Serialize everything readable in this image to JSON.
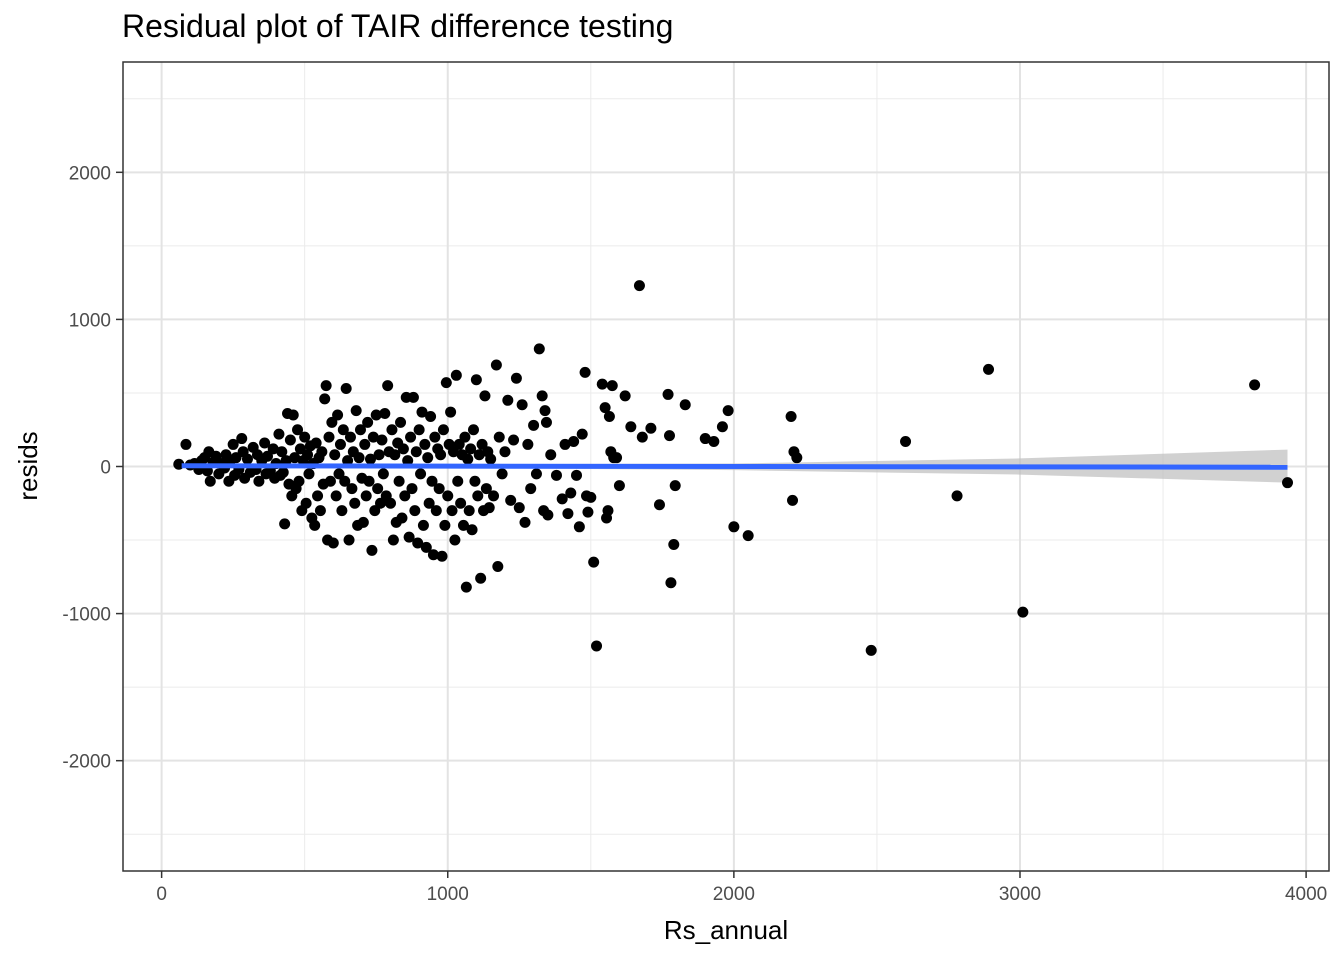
{
  "chart_data": {
    "type": "scatter",
    "title": "Residual plot of TAIR difference testing",
    "xlabel": "Rs_annual",
    "ylabel": "resids",
    "xlim": [
      -135,
      4080
    ],
    "ylim": [
      -2750,
      2750
    ],
    "x_ticks": [
      0,
      1000,
      2000,
      3000,
      4000
    ],
    "x_tick_labels": [
      "0",
      "1000",
      "2000",
      "3000",
      "4000"
    ],
    "y_ticks": [
      -2000,
      -1000,
      0,
      1000,
      2000
    ],
    "y_tick_labels": [
      "-2000",
      "-1000",
      "0",
      "1000",
      "2000"
    ],
    "grid": true,
    "theme": "bw",
    "point_color": "#000000",
    "fit_color": "#3366FF",
    "ci_color": "#bdbdbd",
    "points": [
      [
        60,
        15
      ],
      [
        85,
        150
      ],
      [
        100,
        10
      ],
      [
        115,
        20
      ],
      [
        130,
        -20
      ],
      [
        140,
        40
      ],
      [
        150,
        60
      ],
      [
        160,
        -30
      ],
      [
        165,
        100
      ],
      [
        170,
        -100
      ],
      [
        180,
        30
      ],
      [
        190,
        70
      ],
      [
        200,
        -50
      ],
      [
        210,
        20
      ],
      [
        220,
        -10
      ],
      [
        225,
        80
      ],
      [
        235,
        -100
      ],
      [
        240,
        40
      ],
      [
        250,
        150
      ],
      [
        255,
        -60
      ],
      [
        260,
        60
      ],
      [
        270,
        -20
      ],
      [
        280,
        190
      ],
      [
        285,
        100
      ],
      [
        290,
        -80
      ],
      [
        300,
        50
      ],
      [
        310,
        -40
      ],
      [
        320,
        130
      ],
      [
        330,
        -20
      ],
      [
        335,
        80
      ],
      [
        340,
        -100
      ],
      [
        350,
        40
      ],
      [
        360,
        160
      ],
      [
        365,
        -50
      ],
      [
        370,
        70
      ],
      [
        380,
        -30
      ],
      [
        390,
        120
      ],
      [
        395,
        -80
      ],
      [
        400,
        20
      ],
      [
        410,
        220
      ],
      [
        415,
        -60
      ],
      [
        420,
        100
      ],
      [
        425,
        -40
      ],
      [
        430,
        -390
      ],
      [
        435,
        40
      ],
      [
        440,
        360
      ],
      [
        445,
        -120
      ],
      [
        450,
        180
      ],
      [
        455,
        -200
      ],
      [
        460,
        350
      ],
      [
        465,
        60
      ],
      [
        470,
        -150
      ],
      [
        475,
        250
      ],
      [
        480,
        -100
      ],
      [
        485,
        120
      ],
      [
        490,
        -300
      ],
      [
        495,
        40
      ],
      [
        500,
        200
      ],
      [
        505,
        -250
      ],
      [
        510,
        80
      ],
      [
        515,
        -50
      ],
      [
        520,
        140
      ],
      [
        525,
        -350
      ],
      [
        530,
        20
      ],
      [
        535,
        -400
      ],
      [
        540,
        160
      ],
      [
        545,
        -200
      ],
      [
        550,
        60
      ],
      [
        555,
        -300
      ],
      [
        560,
        100
      ],
      [
        565,
        -120
      ],
      [
        570,
        460
      ],
      [
        575,
        550
      ],
      [
        580,
        -500
      ],
      [
        585,
        200
      ],
      [
        590,
        -100
      ],
      [
        595,
        300
      ],
      [
        600,
        -520
      ],
      [
        605,
        80
      ],
      [
        610,
        -200
      ],
      [
        615,
        350
      ],
      [
        620,
        -50
      ],
      [
        625,
        150
      ],
      [
        630,
        -300
      ],
      [
        635,
        250
      ],
      [
        640,
        -100
      ],
      [
        645,
        530
      ],
      [
        650,
        40
      ],
      [
        655,
        -500
      ],
      [
        660,
        200
      ],
      [
        665,
        -150
      ],
      [
        670,
        100
      ],
      [
        675,
        -250
      ],
      [
        680,
        380
      ],
      [
        685,
        -400
      ],
      [
        690,
        60
      ],
      [
        695,
        250
      ],
      [
        700,
        -80
      ],
      [
        705,
        -380
      ],
      [
        710,
        150
      ],
      [
        715,
        -200
      ],
      [
        720,
        300
      ],
      [
        725,
        -100
      ],
      [
        730,
        50
      ],
      [
        735,
        -570
      ],
      [
        740,
        200
      ],
      [
        745,
        -300
      ],
      [
        750,
        350
      ],
      [
        755,
        -150
      ],
      [
        760,
        80
      ],
      [
        765,
        -250
      ],
      [
        770,
        180
      ],
      [
        775,
        -50
      ],
      [
        780,
        360
      ],
      [
        785,
        -200
      ],
      [
        790,
        550
      ],
      [
        795,
        100
      ],
      [
        800,
        -250
      ],
      [
        805,
        250
      ],
      [
        810,
        -500
      ],
      [
        815,
        80
      ],
      [
        820,
        -380
      ],
      [
        825,
        160
      ],
      [
        830,
        -100
      ],
      [
        835,
        300
      ],
      [
        840,
        -350
      ],
      [
        845,
        120
      ],
      [
        850,
        -200
      ],
      [
        855,
        470
      ],
      [
        860,
        40
      ],
      [
        865,
        -480
      ],
      [
        870,
        200
      ],
      [
        875,
        -150
      ],
      [
        880,
        470
      ],
      [
        885,
        -300
      ],
      [
        890,
        100
      ],
      [
        895,
        -520
      ],
      [
        900,
        250
      ],
      [
        905,
        -50
      ],
      [
        910,
        370
      ],
      [
        915,
        -400
      ],
      [
        920,
        150
      ],
      [
        925,
        -550
      ],
      [
        930,
        60
      ],
      [
        935,
        -250
      ],
      [
        940,
        340
      ],
      [
        945,
        -100
      ],
      [
        950,
        -600
      ],
      [
        955,
        200
      ],
      [
        960,
        -300
      ],
      [
        965,
        120
      ],
      [
        970,
        -150
      ],
      [
        975,
        80
      ],
      [
        980,
        -610
      ],
      [
        985,
        250
      ],
      [
        990,
        -400
      ],
      [
        995,
        570
      ],
      [
        1000,
        -200
      ],
      [
        1005,
        150
      ],
      [
        1010,
        370
      ],
      [
        1015,
        -300
      ],
      [
        1020,
        100
      ],
      [
        1025,
        -500
      ],
      [
        1030,
        620
      ],
      [
        1035,
        -100
      ],
      [
        1040,
        150
      ],
      [
        1045,
        -250
      ],
      [
        1050,
        80
      ],
      [
        1055,
        -400
      ],
      [
        1060,
        200
      ],
      [
        1065,
        -820
      ],
      [
        1070,
        50
      ],
      [
        1075,
        -300
      ],
      [
        1080,
        120
      ],
      [
        1085,
        -430
      ],
      [
        1090,
        250
      ],
      [
        1095,
        -100
      ],
      [
        1100,
        590
      ],
      [
        1105,
        -200
      ],
      [
        1110,
        80
      ],
      [
        1115,
        -760
      ],
      [
        1120,
        150
      ],
      [
        1125,
        -300
      ],
      [
        1130,
        480
      ],
      [
        1135,
        -150
      ],
      [
        1140,
        100
      ],
      [
        1145,
        -280
      ],
      [
        1150,
        50
      ],
      [
        1160,
        -200
      ],
      [
        1170,
        690
      ],
      [
        1175,
        -680
      ],
      [
        1180,
        200
      ],
      [
        1190,
        -50
      ],
      [
        1200,
        100
      ],
      [
        1210,
        450
      ],
      [
        1220,
        -230
      ],
      [
        1230,
        180
      ],
      [
        1240,
        600
      ],
      [
        1250,
        -280
      ],
      [
        1260,
        420
      ],
      [
        1270,
        -380
      ],
      [
        1280,
        150
      ],
      [
        1290,
        -150
      ],
      [
        1300,
        280
      ],
      [
        1310,
        -50
      ],
      [
        1320,
        800
      ],
      [
        1330,
        480
      ],
      [
        1335,
        -300
      ],
      [
        1340,
        380
      ],
      [
        1345,
        300
      ],
      [
        1350,
        -330
      ],
      [
        1360,
        80
      ],
      [
        1380,
        -60
      ],
      [
        1400,
        -220
      ],
      [
        1410,
        150
      ],
      [
        1420,
        -320
      ],
      [
        1430,
        -180
      ],
      [
        1440,
        170
      ],
      [
        1450,
        -60
      ],
      [
        1460,
        -410
      ],
      [
        1470,
        220
      ],
      [
        1480,
        640
      ],
      [
        1485,
        -200
      ],
      [
        1490,
        -310
      ],
      [
        1500,
        -210
      ],
      [
        1510,
        -650
      ],
      [
        1520,
        -1220
      ],
      [
        1540,
        560
      ],
      [
        1550,
        400
      ],
      [
        1555,
        -350
      ],
      [
        1560,
        -300
      ],
      [
        1565,
        340
      ],
      [
        1570,
        100
      ],
      [
        1575,
        550
      ],
      [
        1580,
        60
      ],
      [
        1590,
        60
      ],
      [
        1600,
        -130
      ],
      [
        1620,
        480
      ],
      [
        1640,
        270
      ],
      [
        1670,
        1230
      ],
      [
        1680,
        200
      ],
      [
        1710,
        260
      ],
      [
        1740,
        -260
      ],
      [
        1770,
        490
      ],
      [
        1775,
        210
      ],
      [
        1780,
        -790
      ],
      [
        1790,
        -530
      ],
      [
        1795,
        -130
      ],
      [
        1830,
        420
      ],
      [
        1900,
        190
      ],
      [
        1930,
        170
      ],
      [
        1960,
        270
      ],
      [
        1980,
        380
      ],
      [
        2000,
        -410
      ],
      [
        2050,
        -470
      ],
      [
        2200,
        340
      ],
      [
        2205,
        -230
      ],
      [
        2210,
        100
      ],
      [
        2220,
        60
      ],
      [
        2600,
        170
      ],
      [
        2780,
        -200
      ],
      [
        2890,
        660
      ],
      [
        3010,
        -990
      ],
      [
        2480,
        -1250
      ],
      [
        3820,
        555
      ],
      [
        3935,
        -110
      ]
    ],
    "fit": {
      "x": [
        70,
        3935
      ],
      "y": [
        5,
        -5
      ]
    },
    "ci": {
      "x": [
        70,
        1000,
        2000,
        3000,
        3935
      ],
      "lower": [
        -10,
        -10,
        -25,
        -55,
        -110
      ],
      "upper": [
        20,
        15,
        20,
        55,
        115
      ]
    }
  }
}
